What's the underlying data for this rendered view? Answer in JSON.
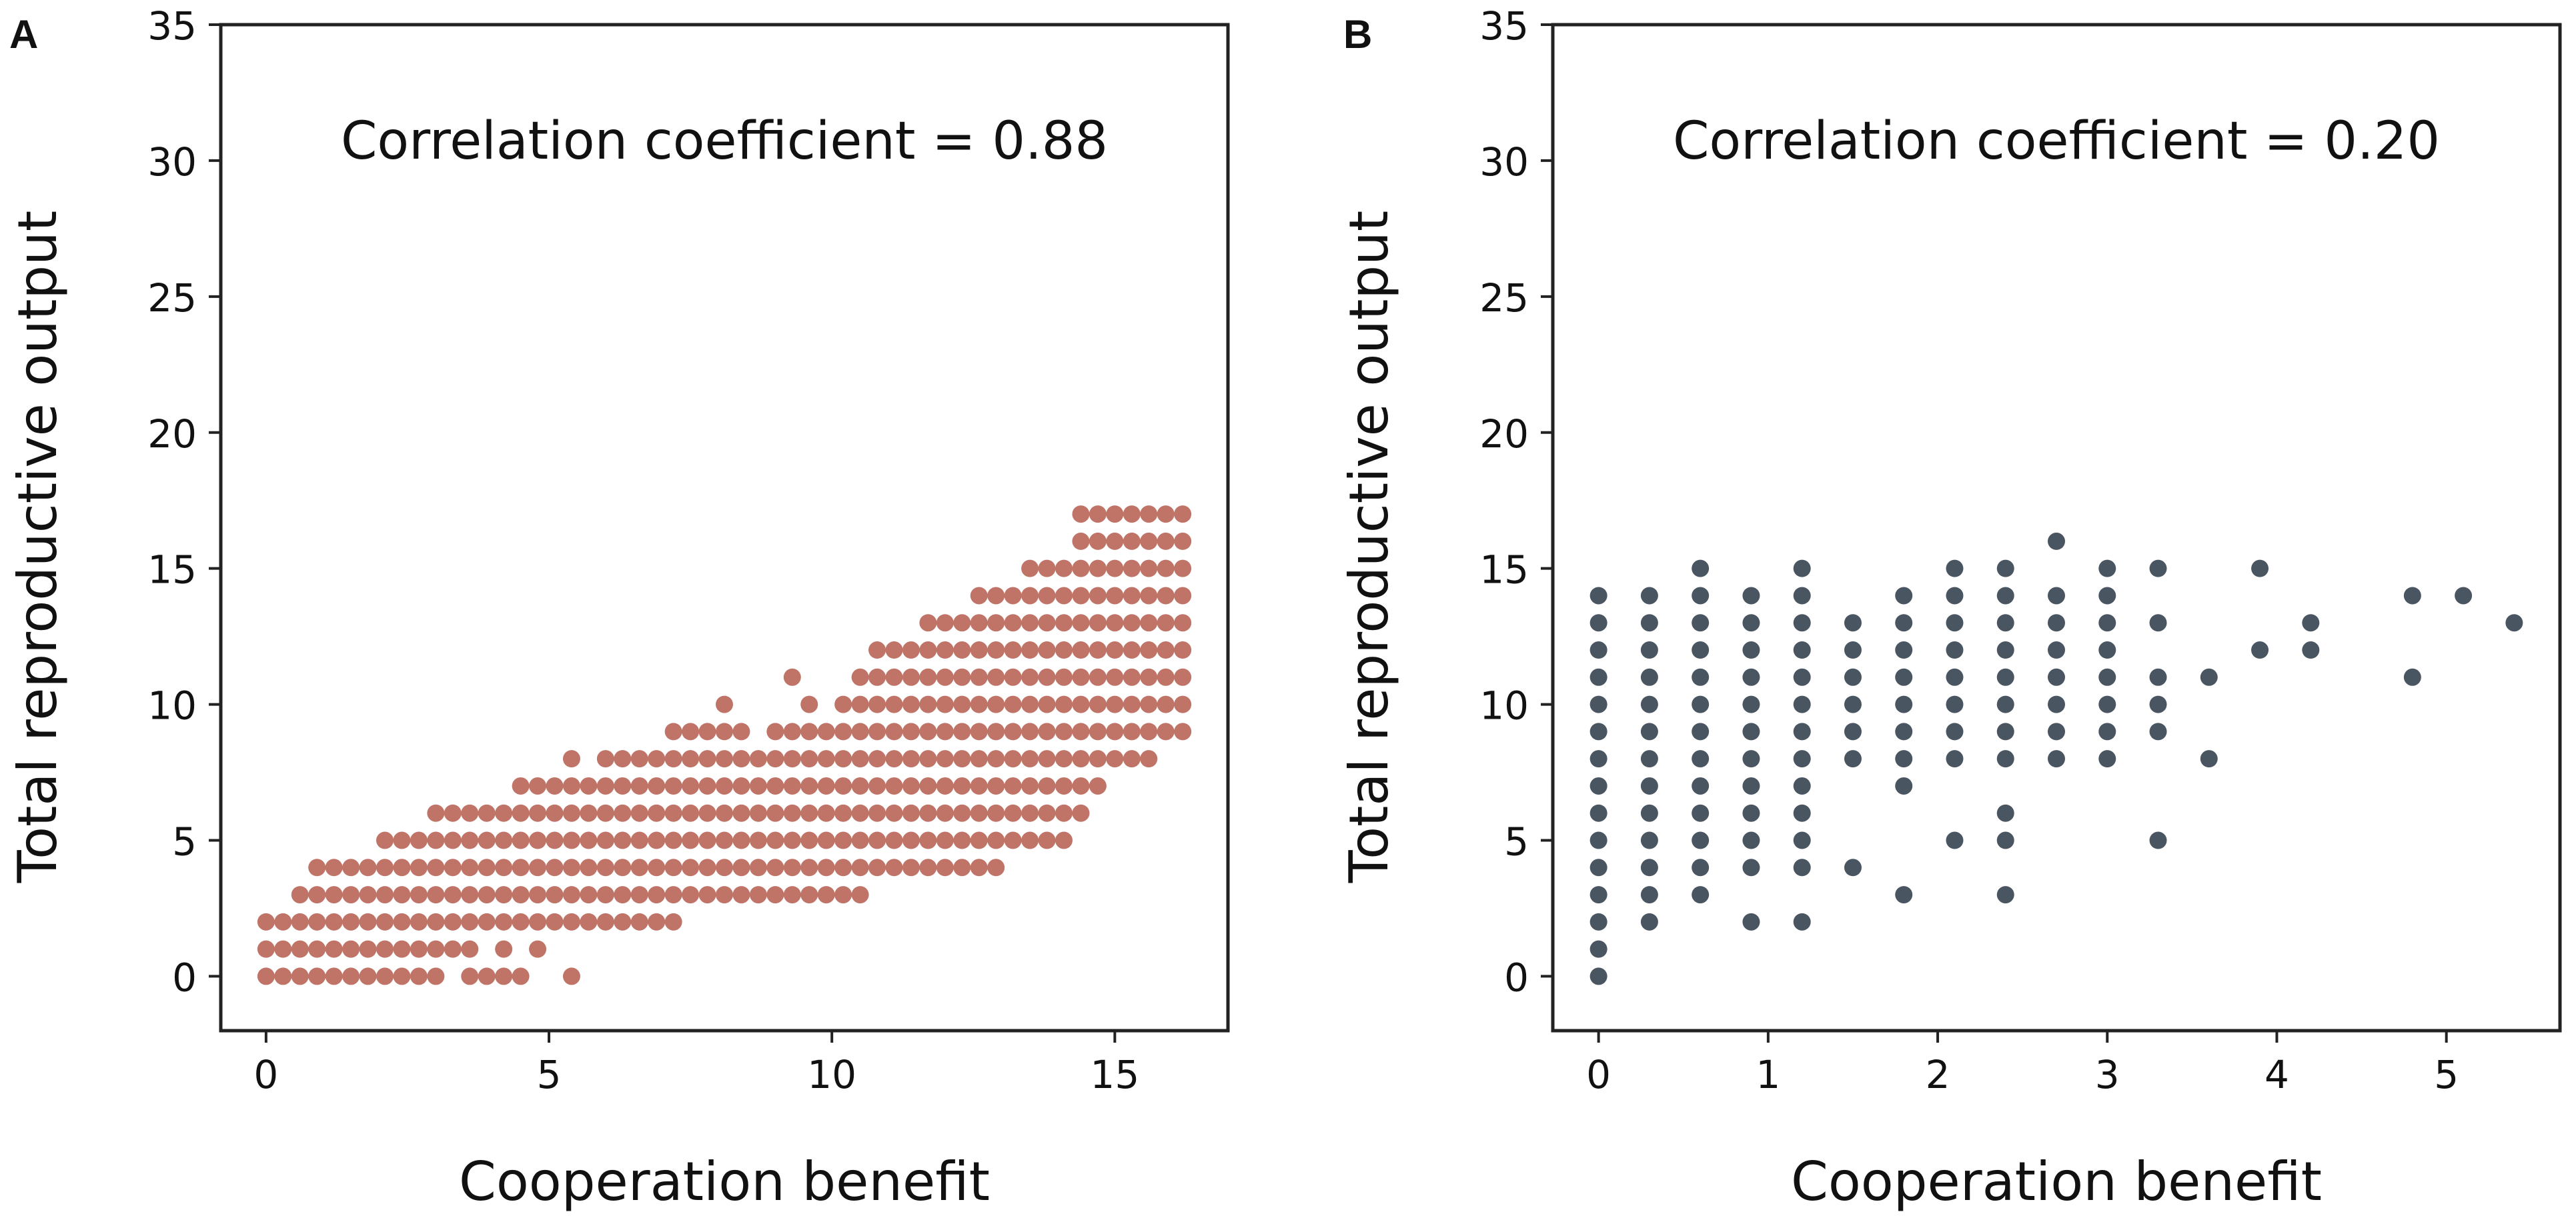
{
  "figure": {
    "panels": [
      "A",
      "B"
    ]
  },
  "chart_data": [
    {
      "panel": "A",
      "type": "scatter",
      "title": "",
      "annotation": "Correlation coefficient = 0.88",
      "xlabel": "Cooperation benefit",
      "ylabel": "Total reproductive output",
      "xlim": [
        -0.8,
        17.0
      ],
      "ylim": [
        -2,
        35
      ],
      "xticks": [
        0,
        5,
        10,
        15
      ],
      "yticks": [
        0,
        5,
        10,
        15,
        20,
        25,
        30,
        35
      ],
      "grid": false,
      "color": "#c07468",
      "rows": [
        {
          "y": 0,
          "x": [
            0,
            0.3,
            0.6,
            0.9,
            1.2,
            1.5,
            1.8,
            2.1,
            2.4,
            2.7,
            3.0,
            3.6,
            3.9,
            4.2,
            4.5,
            5.4
          ]
        },
        {
          "y": 1,
          "x": [
            0,
            0.3,
            0.6,
            0.9,
            1.2,
            1.5,
            1.8,
            2.1,
            2.4,
            2.7,
            3.0,
            3.3,
            3.6,
            4.2,
            4.8
          ]
        },
        {
          "y": 2,
          "x": [
            0,
            0.3,
            0.6,
            0.9,
            1.2,
            1.5,
            1.8,
            2.1,
            2.4,
            2.7,
            3.0,
            3.3,
            3.6,
            3.9,
            4.2,
            4.5,
            4.8,
            5.1,
            5.4,
            5.7,
            6.0,
            6.3,
            6.6,
            6.9,
            7.2
          ]
        },
        {
          "y": 3,
          "x": [
            0.6,
            0.9,
            1.2,
            1.5,
            1.8,
            2.1,
            2.4,
            2.7,
            3.0,
            3.3,
            3.6,
            3.9,
            4.2,
            4.5,
            4.8,
            5.1,
            5.4,
            5.7,
            6.0,
            6.3,
            6.6,
            6.9,
            7.2,
            7.5,
            7.8,
            8.1,
            8.4,
            8.7,
            9.0,
            9.3,
            9.6,
            9.9,
            10.2,
            10.5
          ]
        },
        {
          "y": 4,
          "x": [
            0.9,
            1.2,
            1.5,
            1.8,
            2.1,
            2.4,
            2.7,
            3.0,
            3.3,
            3.6,
            3.9,
            4.2,
            4.5,
            4.8,
            5.1,
            5.4,
            5.7,
            6.0,
            6.3,
            6.6,
            6.9,
            7.2,
            7.5,
            7.8,
            8.1,
            8.4,
            8.7,
            9.0,
            9.3,
            9.6,
            9.9,
            10.2,
            10.5,
            10.8,
            11.1,
            11.4,
            11.7,
            12.0,
            12.3,
            12.6,
            12.9
          ]
        },
        {
          "y": 5,
          "x": [
            2.1,
            2.4,
            2.7,
            3.0,
            3.3,
            3.6,
            3.9,
            4.2,
            4.5,
            4.8,
            5.1,
            5.4,
            5.7,
            6.0,
            6.3,
            6.6,
            6.9,
            7.2,
            7.5,
            7.8,
            8.1,
            8.4,
            8.7,
            9.0,
            9.3,
            9.6,
            9.9,
            10.2,
            10.5,
            10.8,
            11.1,
            11.4,
            11.7,
            12.0,
            12.3,
            12.6,
            12.9,
            13.2,
            13.5,
            13.8,
            14.1
          ]
        },
        {
          "y": 6,
          "x": [
            3.0,
            3.3,
            3.6,
            3.9,
            4.2,
            4.5,
            4.8,
            5.1,
            5.4,
            5.7,
            6.0,
            6.3,
            6.6,
            6.9,
            7.2,
            7.5,
            7.8,
            8.1,
            8.4,
            8.7,
            9.0,
            9.3,
            9.6,
            9.9,
            10.2,
            10.5,
            10.8,
            11.1,
            11.4,
            11.7,
            12.0,
            12.3,
            12.6,
            12.9,
            13.2,
            13.5,
            13.8,
            14.1,
            14.4
          ]
        },
        {
          "y": 7,
          "x": [
            4.5,
            4.8,
            5.1,
            5.4,
            5.7,
            6.0,
            6.3,
            6.6,
            6.9,
            7.2,
            7.5,
            7.8,
            8.1,
            8.4,
            8.7,
            9.0,
            9.3,
            9.6,
            9.9,
            10.2,
            10.5,
            10.8,
            11.1,
            11.4,
            11.7,
            12.0,
            12.3,
            12.6,
            12.9,
            13.2,
            13.5,
            13.8,
            14.1,
            14.4,
            14.7
          ]
        },
        {
          "y": 8,
          "x": [
            5.4,
            6.0,
            6.3,
            6.6,
            6.9,
            7.2,
            7.5,
            7.8,
            8.1,
            8.4,
            8.7,
            9.0,
            9.3,
            9.6,
            9.9,
            10.2,
            10.5,
            10.8,
            11.1,
            11.4,
            11.7,
            12.0,
            12.3,
            12.6,
            12.9,
            13.2,
            13.5,
            13.8,
            14.1,
            14.4,
            14.7,
            15.0,
            15.3,
            15.6
          ]
        },
        {
          "y": 9,
          "x": [
            7.2,
            7.5,
            7.8,
            8.1,
            8.4,
            9.0,
            9.3,
            9.6,
            9.9,
            10.2,
            10.5,
            10.8,
            11.1,
            11.4,
            11.7,
            12.0,
            12.3,
            12.6,
            12.9,
            13.2,
            13.5,
            13.8,
            14.1,
            14.4,
            14.7,
            15.0,
            15.3,
            15.6,
            15.9,
            16.2
          ]
        },
        {
          "y": 10,
          "x": [
            8.1,
            9.6,
            10.2,
            10.5,
            10.8,
            11.1,
            11.4,
            11.7,
            12.0,
            12.3,
            12.6,
            12.9,
            13.2,
            13.5,
            13.8,
            14.1,
            14.4,
            14.7,
            15.0,
            15.3,
            15.6,
            15.9,
            16.2
          ]
        },
        {
          "y": 11,
          "x": [
            9.3,
            10.5,
            10.8,
            11.1,
            11.4,
            11.7,
            12.0,
            12.3,
            12.6,
            12.9,
            13.2,
            13.5,
            13.8,
            14.1,
            14.4,
            14.7,
            15.0,
            15.3,
            15.6,
            15.9,
            16.2
          ]
        },
        {
          "y": 12,
          "x": [
            10.8,
            11.1,
            11.4,
            11.7,
            12.0,
            12.3,
            12.6,
            12.9,
            13.2,
            13.5,
            13.8,
            14.1,
            14.4,
            14.7,
            15.0,
            15.3,
            15.6,
            15.9,
            16.2
          ]
        },
        {
          "y": 13,
          "x": [
            11.7,
            12.0,
            12.3,
            12.6,
            12.9,
            13.2,
            13.5,
            13.8,
            14.1,
            14.4,
            14.7,
            15.0,
            15.3,
            15.6,
            15.9,
            16.2
          ]
        },
        {
          "y": 14,
          "x": [
            12.6,
            12.9,
            13.2,
            13.5,
            13.8,
            14.1,
            14.4,
            14.7,
            15.0,
            15.3,
            15.6,
            15.9,
            16.2
          ]
        },
        {
          "y": 15,
          "x": [
            13.5,
            13.8,
            14.1,
            14.4,
            14.7,
            15.0,
            15.3,
            15.6,
            15.9,
            16.2
          ]
        },
        {
          "y": 16,
          "x": [
            14.4,
            14.7,
            15.0,
            15.3,
            15.6,
            15.9,
            16.2
          ]
        },
        {
          "y": 17,
          "x": [
            14.4,
            14.7,
            15.0,
            15.3,
            15.6,
            15.9,
            16.2
          ]
        }
      ]
    },
    {
      "panel": "B",
      "type": "scatter",
      "title": "",
      "annotation": "Correlation coefficient = 0.20",
      "xlabel": "Cooperation benefit",
      "ylabel": "Total reproductive output",
      "xlim": [
        -0.27,
        5.67
      ],
      "ylim": [
        -2,
        35
      ],
      "xticks": [
        0,
        1,
        2,
        3,
        4,
        5
      ],
      "yticks": [
        0,
        5,
        10,
        15,
        20,
        25,
        30,
        35
      ],
      "grid": false,
      "color": "#4a5562",
      "columns": [
        {
          "x": 0.0,
          "y": [
            0,
            1,
            2,
            3,
            4,
            5,
            6,
            7,
            8,
            9,
            10,
            11,
            12,
            13,
            14
          ]
        },
        {
          "x": 0.3,
          "y": [
            2,
            3,
            4,
            5,
            6,
            7,
            8,
            9,
            10,
            11,
            12,
            13,
            14
          ]
        },
        {
          "x": 0.6,
          "y": [
            3,
            4,
            5,
            6,
            7,
            8,
            9,
            10,
            11,
            12,
            13,
            14,
            15
          ]
        },
        {
          "x": 0.9,
          "y": [
            2,
            4,
            5,
            6,
            7,
            8,
            9,
            10,
            11,
            12,
            13,
            14
          ]
        },
        {
          "x": 1.2,
          "y": [
            2,
            4,
            5,
            6,
            7,
            8,
            9,
            10,
            11,
            12,
            13,
            14,
            15
          ]
        },
        {
          "x": 1.5,
          "y": [
            4,
            8,
            9,
            10,
            11,
            12,
            13
          ]
        },
        {
          "x": 1.8,
          "y": [
            3,
            7,
            8,
            9,
            10,
            11,
            12,
            13,
            14
          ]
        },
        {
          "x": 2.1,
          "y": [
            5,
            8,
            9,
            10,
            11,
            12,
            13,
            14,
            15
          ]
        },
        {
          "x": 2.4,
          "y": [
            3,
            5,
            6,
            8,
            9,
            10,
            11,
            12,
            13,
            14,
            15
          ]
        },
        {
          "x": 2.7,
          "y": [
            8,
            9,
            10,
            11,
            12,
            13,
            14,
            16
          ]
        },
        {
          "x": 3.0,
          "y": [
            8,
            9,
            10,
            11,
            12,
            13,
            14,
            15
          ]
        },
        {
          "x": 3.3,
          "y": [
            5,
            9,
            10,
            11,
            13,
            15
          ]
        },
        {
          "x": 3.6,
          "y": [
            8,
            11
          ]
        },
        {
          "x": 3.9,
          "y": [
            12,
            15
          ]
        },
        {
          "x": 4.2,
          "y": [
            12,
            13
          ]
        },
        {
          "x": 4.8,
          "y": [
            11,
            14
          ]
        },
        {
          "x": 5.1,
          "y": [
            14
          ]
        },
        {
          "x": 5.4,
          "y": [
            13
          ]
        }
      ]
    }
  ]
}
